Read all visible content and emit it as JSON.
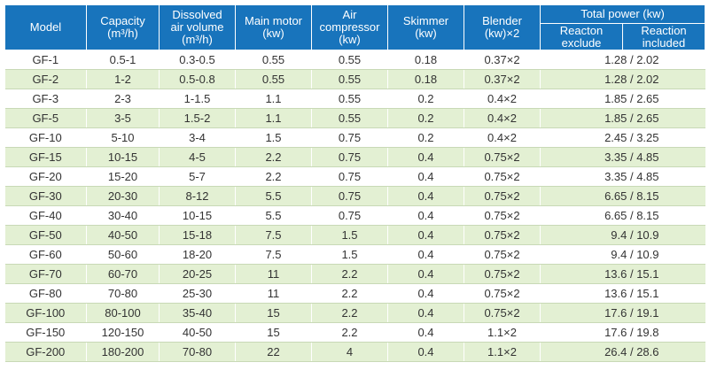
{
  "headers": {
    "model": "Model",
    "capacity": "Capacity\n(m³/h)",
    "dissolved": "Dissolved\nair volume\n(m³/h)",
    "motor": "Main motor\n(kw)",
    "compressor": "Air\ncompressor\n(kw)",
    "skimmer": "Skimmer\n(kw)",
    "blender": "Blender\n(kw)×2",
    "total": "Total power (kw)",
    "reaction_exclude": "Reacton\nexclude",
    "reaction_included": "Reaction\nincluded"
  },
  "rows": [
    {
      "model": "GF-1",
      "capacity": "0.5-1",
      "dissolved": "0.3-0.5",
      "motor": "0.55",
      "compressor": "0.55",
      "skimmer": "0.18",
      "blender": "0.37×2",
      "total": "1.28 / 2.02"
    },
    {
      "model": "GF-2",
      "capacity": "1-2",
      "dissolved": "0.5-0.8",
      "motor": "0.55",
      "compressor": "0.55",
      "skimmer": "0.18",
      "blender": "0.37×2",
      "total": "1.28 / 2.02"
    },
    {
      "model": "GF-3",
      "capacity": "2-3",
      "dissolved": "1-1.5",
      "motor": "1.1",
      "compressor": "0.55",
      "skimmer": "0.2",
      "blender": "0.4×2",
      "total": "1.85 / 2.65"
    },
    {
      "model": "GF-5",
      "capacity": "3-5",
      "dissolved": "1.5-2",
      "motor": "1.1",
      "compressor": "0.55",
      "skimmer": "0.2",
      "blender": "0.4×2",
      "total": "1.85 / 2.65"
    },
    {
      "model": "GF-10",
      "capacity": "5-10",
      "dissolved": "3-4",
      "motor": "1.5",
      "compressor": "0.75",
      "skimmer": "0.2",
      "blender": "0.4×2",
      "total": "2.45 / 3.25"
    },
    {
      "model": "GF-15",
      "capacity": "10-15",
      "dissolved": "4-5",
      "motor": "2.2",
      "compressor": "0.75",
      "skimmer": "0.4",
      "blender": "0.75×2",
      "total": "3.35 / 4.85"
    },
    {
      "model": "GF-20",
      "capacity": "15-20",
      "dissolved": "5-7",
      "motor": "2.2",
      "compressor": "0.75",
      "skimmer": "0.4",
      "blender": "0.75×2",
      "total": "3.35 / 4.85"
    },
    {
      "model": "GF-30",
      "capacity": "20-30",
      "dissolved": "8-12",
      "motor": "5.5",
      "compressor": "0.75",
      "skimmer": "0.4",
      "blender": "0.75×2",
      "total": "6.65 / 8.15"
    },
    {
      "model": "GF-40",
      "capacity": "30-40",
      "dissolved": "10-15",
      "motor": "5.5",
      "compressor": "0.75",
      "skimmer": "0.4",
      "blender": "0.75×2",
      "total": "6.65 / 8.15"
    },
    {
      "model": "GF-50",
      "capacity": "40-50",
      "dissolved": "15-18",
      "motor": "7.5",
      "compressor": "1.5",
      "skimmer": "0.4",
      "blender": "0.75×2",
      "total": "9.4 / 10.9"
    },
    {
      "model": "GF-60",
      "capacity": "50-60",
      "dissolved": "18-20",
      "motor": "7.5",
      "compressor": "1.5",
      "skimmer": "0.4",
      "blender": "0.75×2",
      "total": "9.4 / 10.9"
    },
    {
      "model": "GF-70",
      "capacity": "60-70",
      "dissolved": "20-25",
      "motor": "11",
      "compressor": "2.2",
      "skimmer": "0.4",
      "blender": "0.75×2",
      "total": "13.6 / 15.1"
    },
    {
      "model": "GF-80",
      "capacity": "70-80",
      "dissolved": "25-30",
      "motor": "11",
      "compressor": "2.2",
      "skimmer": "0.4",
      "blender": "0.75×2",
      "total": "13.6 / 15.1"
    },
    {
      "model": "GF-100",
      "capacity": "80-100",
      "dissolved": "35-40",
      "motor": "15",
      "compressor": "2.2",
      "skimmer": "0.4",
      "blender": "0.75×2",
      "total": "17.6 / 19.1"
    },
    {
      "model": "GF-150",
      "capacity": "120-150",
      "dissolved": "40-50",
      "motor": "15",
      "compressor": "2.2",
      "skimmer": "0.4",
      "blender": "1.1×2",
      "total": "17.6 / 19.8"
    },
    {
      "model": "GF-200",
      "capacity": "180-200",
      "dissolved": "70-80",
      "motor": "22",
      "compressor": "4",
      "skimmer": "0.4",
      "blender": "1.1×2",
      "total": "26.4 / 28.6"
    }
  ],
  "colors": {
    "header_bg": "#1874bc",
    "header_text": "#ffffff",
    "row_alt_bg": "#e3f0d3",
    "row_bg": "#ffffff",
    "body_text": "#333333"
  }
}
